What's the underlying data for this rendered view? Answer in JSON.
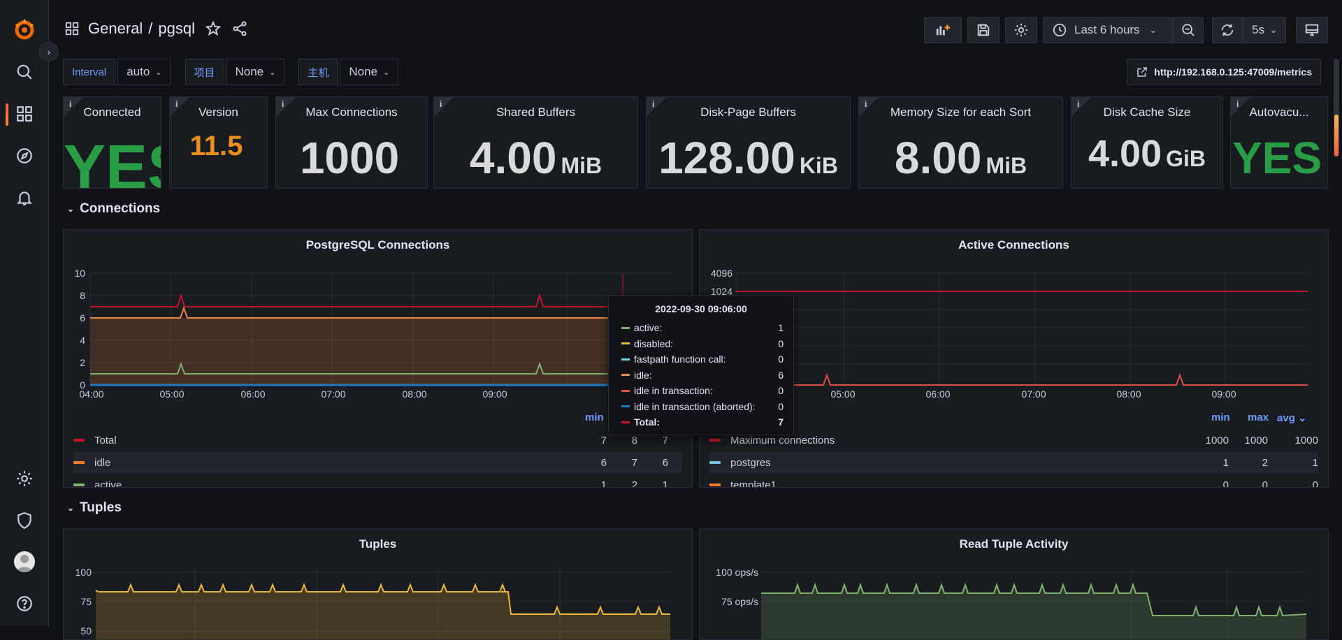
{
  "breadcrumb": {
    "folder": "General",
    "separator": "/",
    "dashboard": "pgsql"
  },
  "toolbar": {
    "time_range": "Last 6 hours",
    "refresh": "5s"
  },
  "variables": [
    {
      "label": "Interval",
      "value": "auto"
    },
    {
      "label": "项目",
      "value": "None"
    },
    {
      "label": "主机",
      "value": "None"
    }
  ],
  "metrics_link": "http://192.168.0.125:47009/metrics",
  "stats": [
    {
      "title": "Connected",
      "value": "YES",
      "unit": "",
      "color": "#299c46"
    },
    {
      "title": "Version",
      "value": "11.5",
      "unit": "",
      "color": "#ec8f1a"
    },
    {
      "title": "Max Connections",
      "value": "1000",
      "unit": "",
      "color": "#d8d9da"
    },
    {
      "title": "Shared Buffers",
      "value": "4.00",
      "unit": "MiB",
      "color": "#d8d9da"
    },
    {
      "title": "Disk-Page Buffers",
      "value": "128.00",
      "unit": "KiB",
      "color": "#d8d9da"
    },
    {
      "title": "Memory Size for each Sort",
      "value": "8.00",
      "unit": "MiB",
      "color": "#d8d9da"
    },
    {
      "title": "Disk Cache Size",
      "value": "4.00",
      "unit": "GiB",
      "color": "#d8d9da"
    },
    {
      "title": "Autovacu...",
      "value": "YES",
      "unit": "",
      "color": "#299c46"
    }
  ],
  "rows": {
    "connections": "Connections",
    "tuples": "Tuples"
  },
  "panels": {
    "pg_conn": {
      "title": "PostgreSQL Connections",
      "y_ticks": [
        "10",
        "8",
        "6",
        "4",
        "2",
        "0"
      ],
      "x_ticks": [
        "04:00",
        "05:00",
        "06:00",
        "07:00",
        "08:00",
        "09:00"
      ],
      "legend_headers": [
        "min"
      ],
      "legend_rows": [
        {
          "name": "Total",
          "color": "#c4162a",
          "min": "7",
          "max": "8",
          "avg": "7"
        },
        {
          "name": "idle",
          "color": "#ff7b2b",
          "min": "6",
          "max": "7",
          "avg": "6"
        },
        {
          "name": "active",
          "color": "#7eb26d",
          "min": "1",
          "max": "2",
          "avg": "1"
        }
      ]
    },
    "active_conn": {
      "title": "Active Connections",
      "y_ticks": [
        "4096",
        "1024"
      ],
      "x_ticks": [
        "05:00",
        "06:00",
        "07:00",
        "08:00",
        "09:00"
      ],
      "legend_headers": [
        "min",
        "max",
        "avg"
      ],
      "legend_rows": [
        {
          "name": "Maximum connections",
          "color": "#c4162a",
          "min": "1000",
          "max": "1000",
          "avg": "1000"
        },
        {
          "name": "postgres",
          "color": "#73bfe0",
          "min": "1",
          "max": "2",
          "avg": "1"
        },
        {
          "name": "template1",
          "color": "#ff7b2b",
          "min": "0",
          "max": "0",
          "avg": "0"
        }
      ]
    },
    "tuples": {
      "title": "Tuples",
      "y_ticks": [
        "100",
        "75",
        "50"
      ]
    },
    "read_tuple": {
      "title": "Read Tuple Activity",
      "y_ticks": [
        "100 ops/s",
        "75 ops/s"
      ]
    }
  },
  "tooltip": {
    "time": "2022-09-30 09:06:00",
    "rows": [
      {
        "label": "active:",
        "value": "1",
        "color": "#7eb26d"
      },
      {
        "label": "disabled:",
        "value": "0",
        "color": "#eab839"
      },
      {
        "label": "fastpath function call:",
        "value": "0",
        "color": "#6ed0e0"
      },
      {
        "label": "idle:",
        "value": "6",
        "color": "#ef843c"
      },
      {
        "label": "idle in transaction:",
        "value": "0",
        "color": "#e24d42"
      },
      {
        "label": "idle in transaction (aborted):",
        "value": "0",
        "color": "#1f78c1"
      },
      {
        "label": "Total:",
        "value": "7",
        "color": "#c4162a"
      }
    ]
  }
}
